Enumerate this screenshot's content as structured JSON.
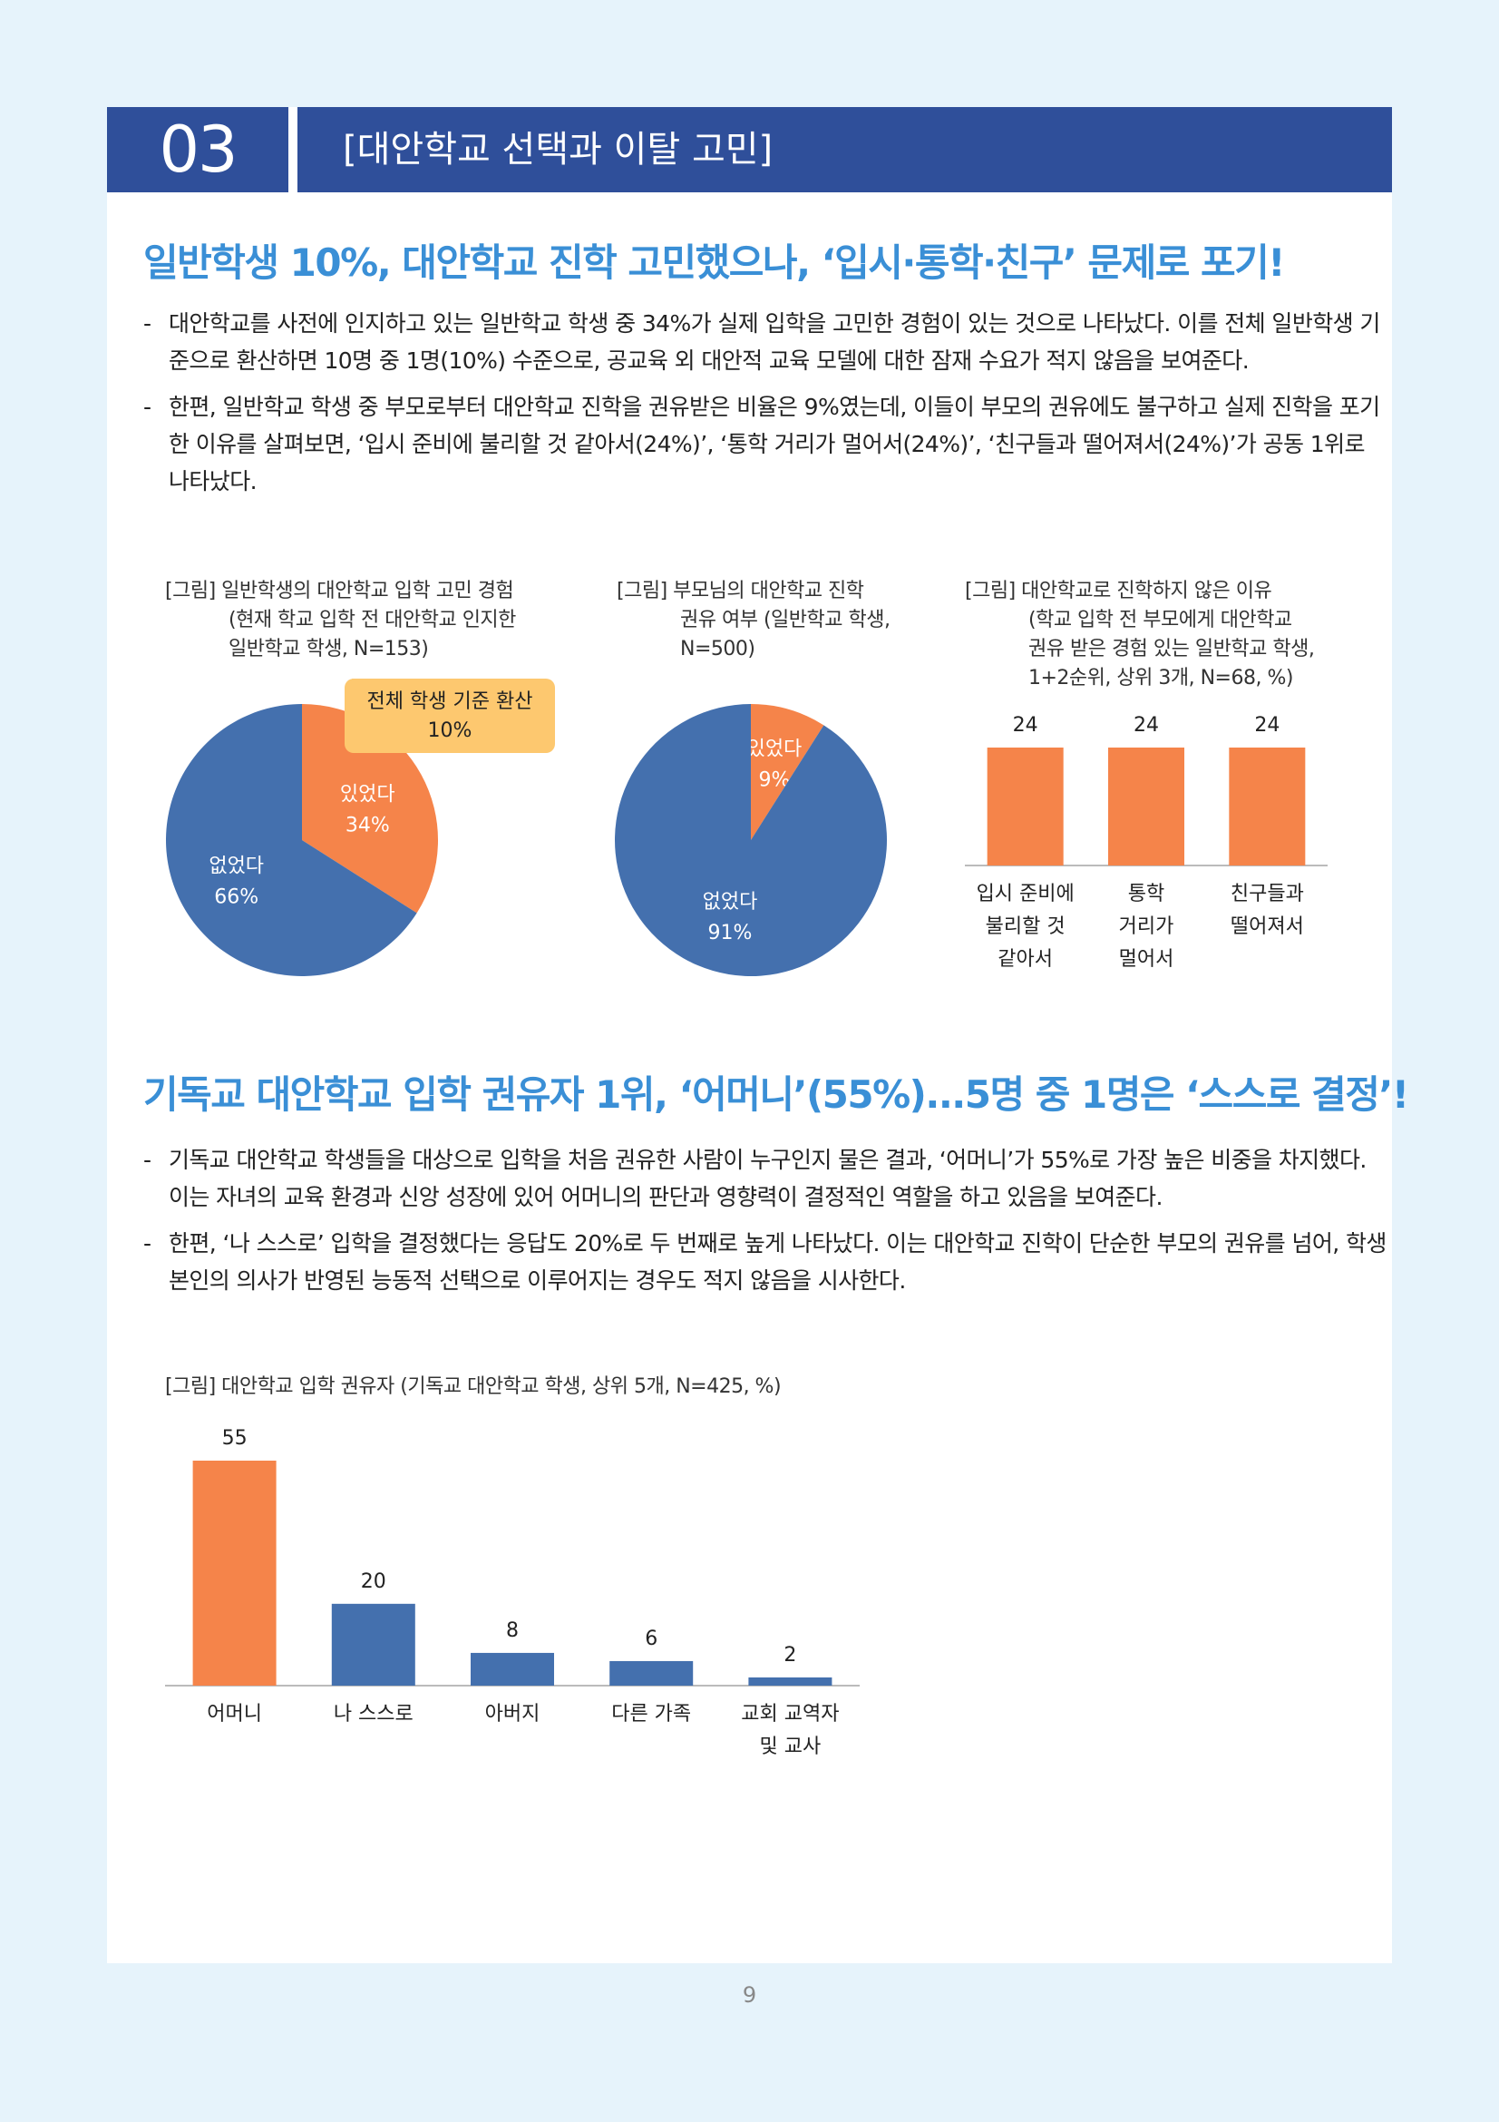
{
  "section": {
    "number": "03",
    "title": "[대안학교 선택과 이탈 고민]"
  },
  "heading1": "일반학생 10%, 대안학교 진학 고민했으나, ‘입시·통학·친구’ 문제로 포기!",
  "paragraphs1": [
    "대안학교를 사전에 인지하고 있는 일반학교 학생 중 34%가 실제 입학을 고민한 경험이 있는 것으로 나타났다. 이를 전체 일반학생 기준으로 환산하면 10명 중 1명(10%) 수준으로, 공교육 외 대안적 교육 모델에 대한 잠재 수요가 적지 않음을 보여준다.",
    "한편, 일반학교 학생 중 부모로부터 대안학교 진학을 권유받은 비율은 9%였는데, 이들이 부모의 권유에도 불구하고 실제 진학을 포기한 이유를 살펴보면, ‘입시 준비에 불리할 것 같아서(24%)’, ‘통학 거리가 멀어서(24%)’, ‘친구들과 떨어져서(24%)’가 공동 1위로 나타났다."
  ],
  "captions": {
    "c1": [
      "[그림] 일반학생의 대안학교 입학 고민 경험",
      "(현재 학교 입학 전 대안학교 인지한",
      "일반학교 학생, N=153)"
    ],
    "c2": [
      "[그림] 부모님의 대안학교 진학",
      "권유 여부 (일반학교 학생,",
      "N=500)"
    ],
    "c3": [
      "[그림] 대안학교로 진학하지 않은 이유",
      "(학교 입학 전 부모에게 대안학교",
      "권유 받은 경험 있는 일반학교 학생,",
      "1+2순위, 상위 3개, N=68, %)"
    ],
    "c4": [
      "[그림] 대안학교 입학 권유자 (기독교 대안학교 학생, 상위 5개, N=425, %)"
    ]
  },
  "chart_data": [
    {
      "type": "pie",
      "slices": [
        {
          "label": "있었다",
          "value": 34,
          "display": "34%",
          "color": "#f5844a"
        },
        {
          "label": "없었다",
          "value": 66,
          "display": "66%",
          "color": "#4470ae"
        }
      ],
      "callout": [
        "전체 학생 기준 환산",
        "10%"
      ]
    },
    {
      "type": "pie",
      "slices": [
        {
          "label": "있었다",
          "value": 9,
          "display": "9%",
          "color": "#f5844a"
        },
        {
          "label": "없었다",
          "value": 91,
          "display": "91%",
          "color": "#4470ae"
        }
      ]
    },
    {
      "type": "bar",
      "categories": [
        [
          "입시 준비에",
          "불리할 것",
          "같아서"
        ],
        [
          "통학",
          "거리가",
          "멀어서"
        ],
        [
          "친구들과",
          "떨어져서"
        ]
      ],
      "values": [
        24,
        24,
        24
      ],
      "colors": [
        "#f5844a",
        "#f5844a",
        "#f5844a"
      ],
      "ylim": [
        0,
        30
      ]
    },
    {
      "type": "bar",
      "categories": [
        [
          "어머니"
        ],
        [
          "나 스스로"
        ],
        [
          "아버지"
        ],
        [
          "다른 가족"
        ],
        [
          "교회 교역자",
          "및 교사"
        ]
      ],
      "values": [
        55,
        20,
        8,
        6,
        2
      ],
      "colors": [
        "#f5844a",
        "#4470ae",
        "#4470ae",
        "#4470ae",
        "#4470ae"
      ],
      "ylim": [
        0,
        55
      ]
    }
  ],
  "heading2": "기독교 대안학교 입학 권유자 1위, ‘어머니’(55%)...5명 중 1명은 ‘스스로 결정’!",
  "paragraphs2": [
    "기독교 대안학교 학생들을 대상으로 입학을 처음 권유한 사람이 누구인지 물은 결과, ‘어머니’가 55%로 가장 높은 비중을 차지했다. 이는 자녀의 교육 환경과 신앙 성장에 있어 어머니의 판단과 영향력이 결정적인 역할을 하고 있음을 보여준다.",
    "한편, ‘나 스스로’ 입학을 결정했다는 응답도 20%로 두 번째로 높게 나타났다. 이는 대안학교 진학이 단순한 부모의 권유를 넘어, 학생 본인의 의사가 반영된 능동적 선택으로 이루어지는 경우도 적지 않음을 시사한다."
  ],
  "page_number": "9"
}
